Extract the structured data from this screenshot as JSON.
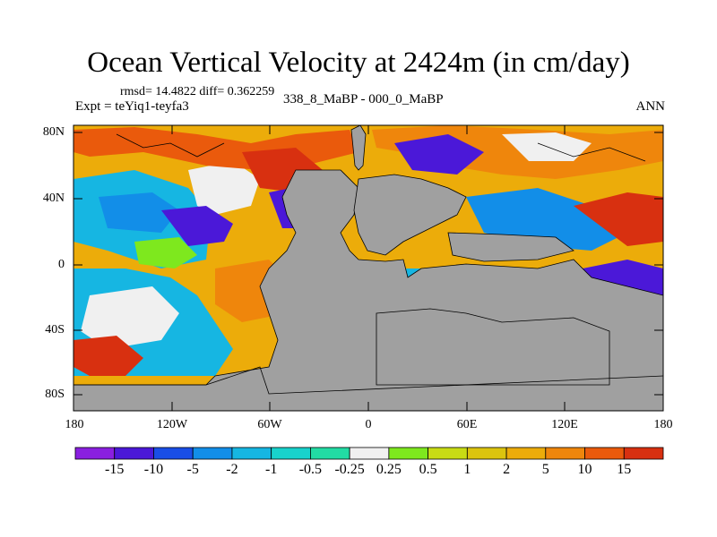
{
  "title": "Ocean Vertical Velocity at 2424m (in cm/day)",
  "stats_line": "rmsd= 14.4822 diff= 0.362259",
  "experiment_line": "Expt = teYiq1-teyfa3",
  "difference_line": "338_8_MaBP - 000_0_MaBP",
  "season": "ANN",
  "lat_labels": [
    "80N",
    "40N",
    "0",
    "40S",
    "80S"
  ],
  "lon_labels": [
    "180",
    "120W",
    "60W",
    "0",
    "60E",
    "120E",
    "180"
  ],
  "colorbar": {
    "labels": [
      "-15",
      "-10",
      "-5",
      "-2",
      "-1",
      "-0.5",
      "-0.25",
      "0.25",
      "0.5",
      "1",
      "2",
      "5",
      "10",
      "15"
    ],
    "colors": [
      "#8a1fe0",
      "#4b18d8",
      "#1a4ee6",
      "#128ee8",
      "#16b6e2",
      "#18d2cc",
      "#22dca4",
      "#f0f0f0",
      "#7ee81e",
      "#c8dc14",
      "#dcc40e",
      "#ecac0a",
      "#ef860c",
      "#ea5a0c",
      "#d83010"
    ]
  },
  "colors": {
    "land": "#a0a0a0",
    "coast": "#000000"
  }
}
